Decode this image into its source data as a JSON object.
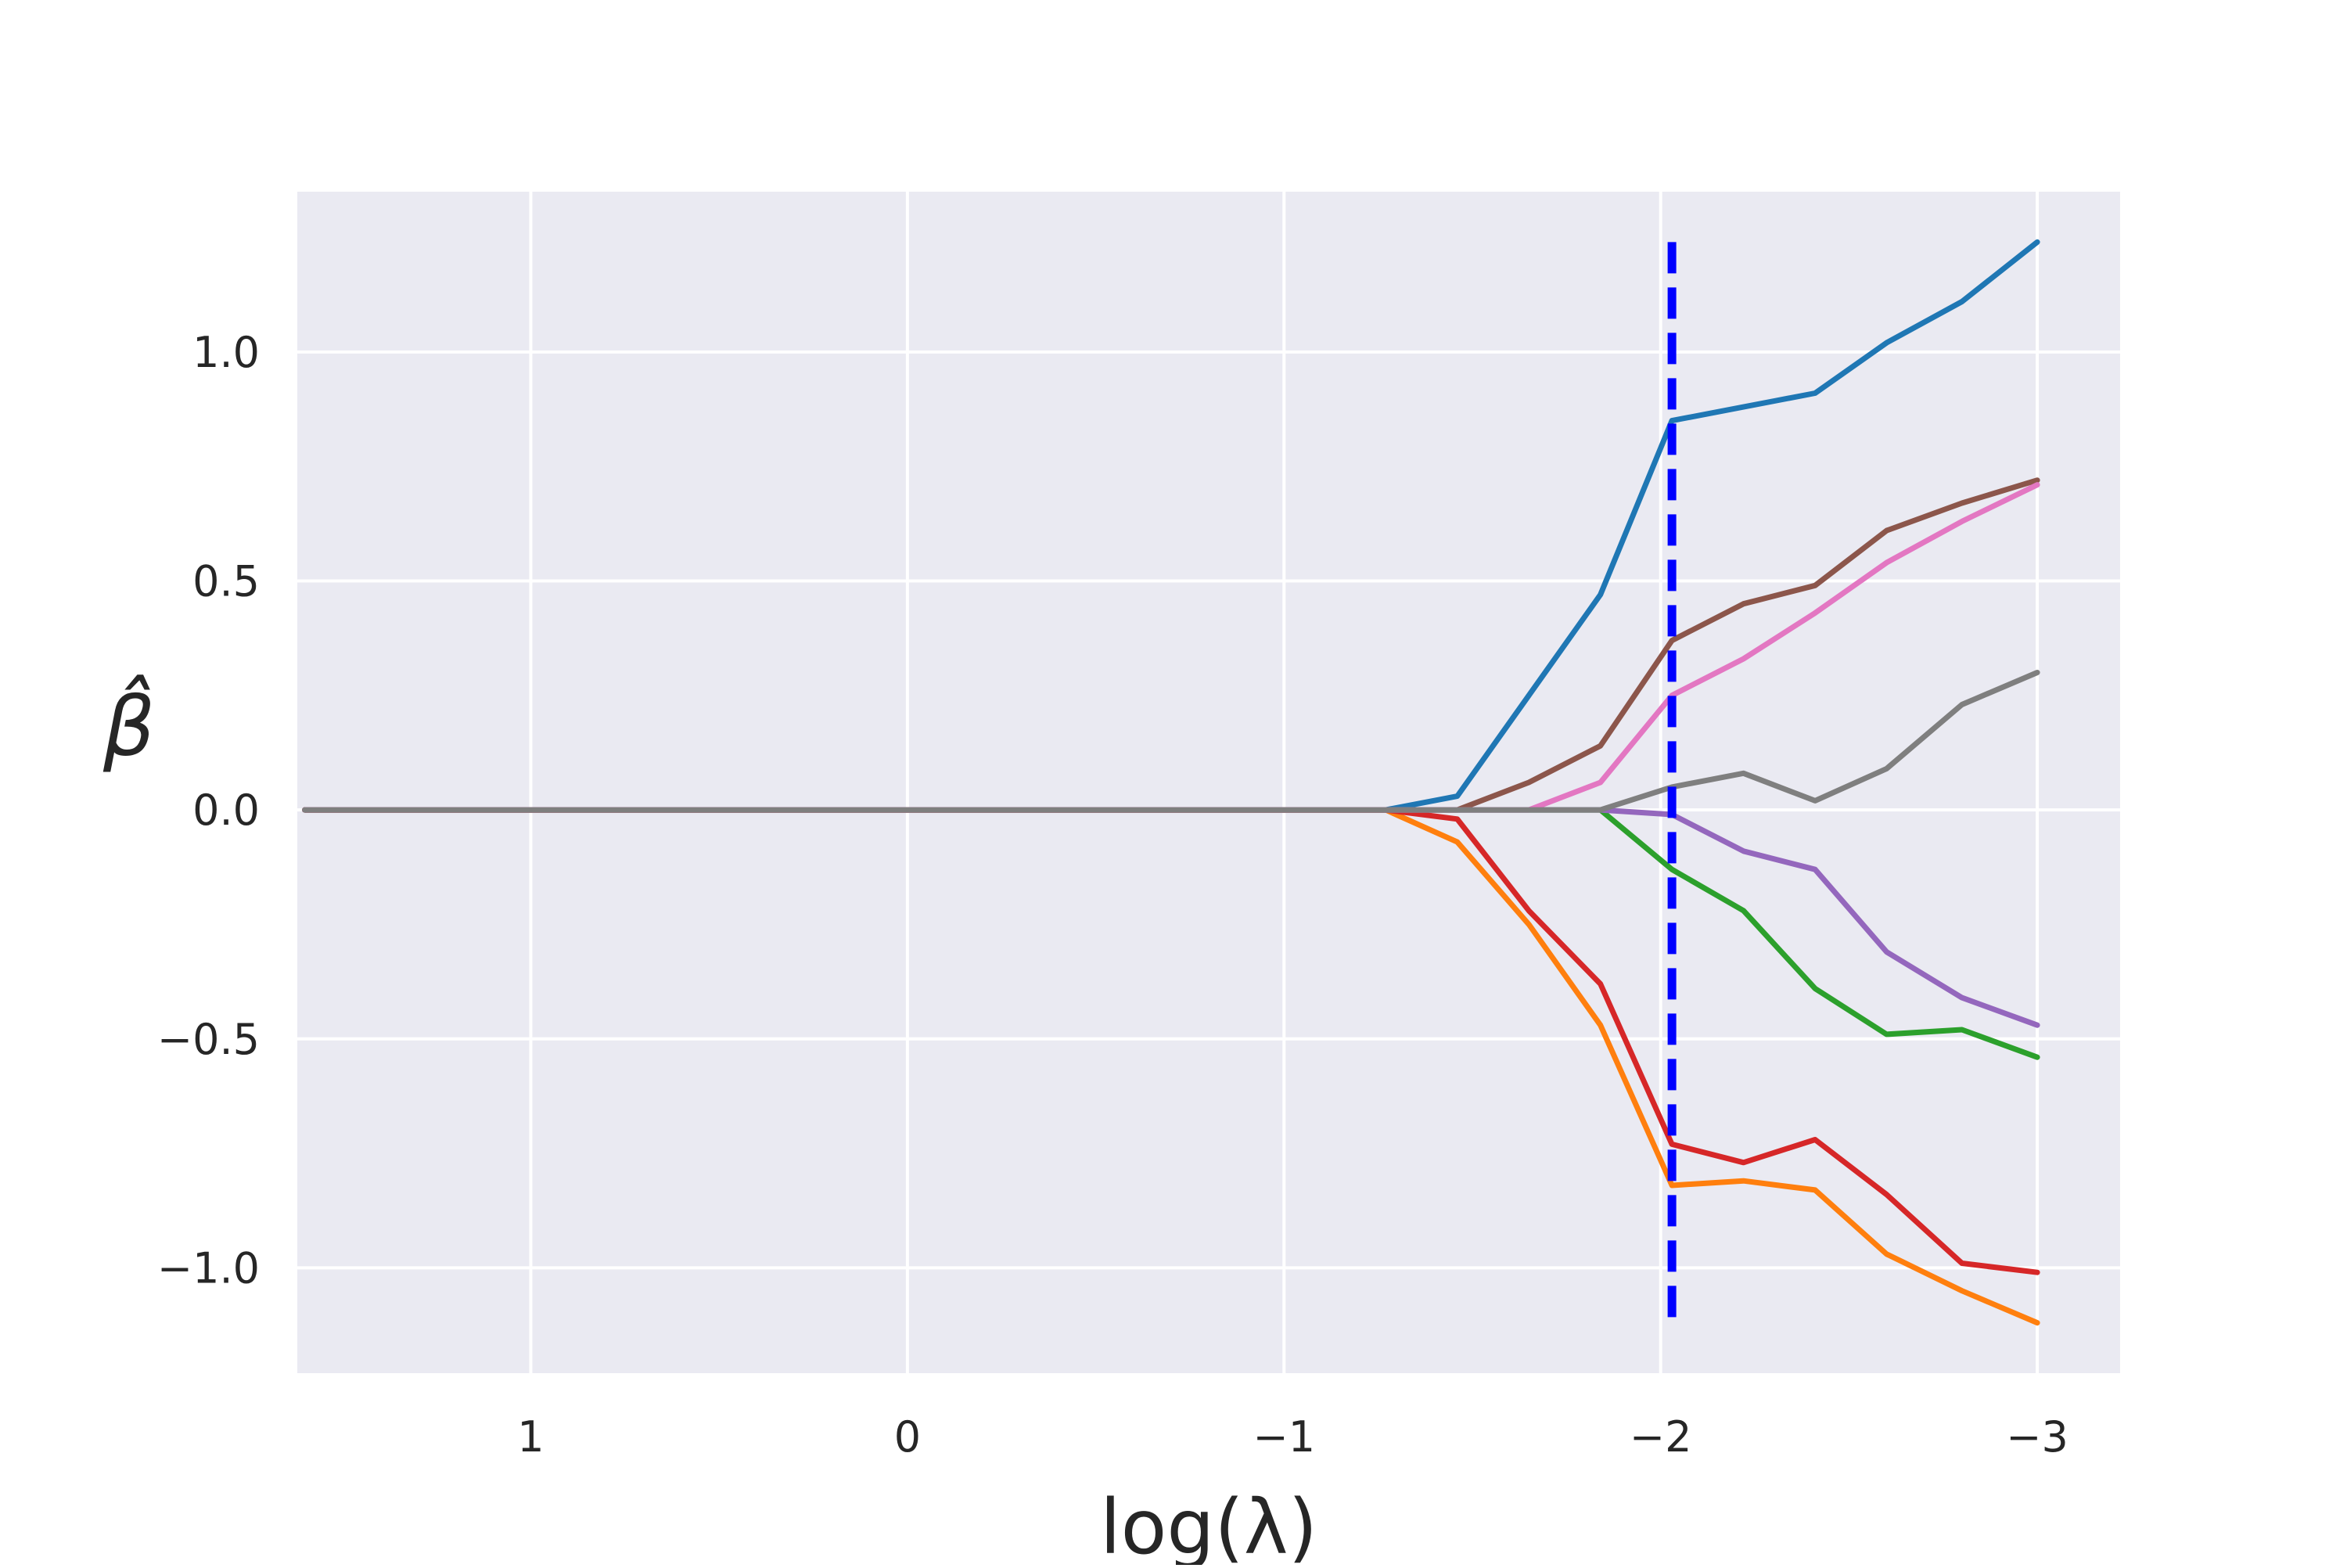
{
  "chart_data": {
    "type": "line",
    "title": "",
    "xlabel": "log(λ)",
    "ylabel": "β̂",
    "x_axis_reversed": true,
    "xlim": [
      1.62,
      -3.22
    ],
    "ylim": [
      -1.23,
      1.35
    ],
    "xticks": [
      1,
      0,
      -1,
      -2,
      -3
    ],
    "xtick_labels": [
      "1",
      "0",
      "−1",
      "−2",
      "−3"
    ],
    "yticks": [
      -1.0,
      -0.5,
      0.0,
      0.5,
      1.0
    ],
    "ytick_labels": [
      "−1.0",
      "−0.5",
      "0.0",
      "0.5",
      "1.0"
    ],
    "grid": true,
    "background": "#eaeaf2",
    "grid_color": "#ffffff",
    "x": [
      1.6,
      -1.27,
      -1.46,
      -1.65,
      -1.84,
      -2.03,
      -2.22,
      -2.41,
      -2.6,
      -2.8,
      -3.0
    ],
    "series": [
      {
        "color": "#1f77b4",
        "values": [
          0,
          0,
          0.03,
          0.25,
          0.47,
          0.85,
          0.88,
          0.91,
          1.02,
          1.11,
          1.24
        ]
      },
      {
        "color": "#ff7f0e",
        "values": [
          0,
          0,
          -0.07,
          -0.25,
          -0.47,
          -0.82,
          -0.81,
          -0.83,
          -0.97,
          -1.05,
          -1.12
        ]
      },
      {
        "color": "#2ca02c",
        "values": [
          0,
          0,
          0,
          0,
          0,
          -0.13,
          -0.22,
          -0.39,
          -0.49,
          -0.48,
          -0.54
        ]
      },
      {
        "color": "#d62728",
        "values": [
          0,
          0,
          -0.02,
          -0.22,
          -0.38,
          -0.73,
          -0.77,
          -0.72,
          -0.84,
          -0.99,
          -1.01
        ]
      },
      {
        "color": "#9467bd",
        "values": [
          0,
          0,
          0,
          0,
          0,
          -0.01,
          -0.09,
          -0.13,
          -0.31,
          -0.41,
          -0.47
        ]
      },
      {
        "color": "#8c564b",
        "values": [
          0,
          0,
          0,
          0.06,
          0.14,
          0.37,
          0.45,
          0.49,
          0.61,
          0.67,
          0.72
        ]
      },
      {
        "color": "#e377c2",
        "values": [
          0,
          0,
          0,
          0,
          0.06,
          0.25,
          0.33,
          0.43,
          0.54,
          0.63,
          0.71
        ]
      },
      {
        "color": "#7f7f7f",
        "values": [
          0,
          0,
          0,
          0,
          0,
          0.05,
          0.08,
          0.02,
          0.09,
          0.23,
          0.3
        ]
      }
    ],
    "vline": {
      "x": -2.03,
      "y_range": [
        -1.12,
        1.24
      ],
      "color": "#0000ff",
      "style": "dashed"
    }
  }
}
